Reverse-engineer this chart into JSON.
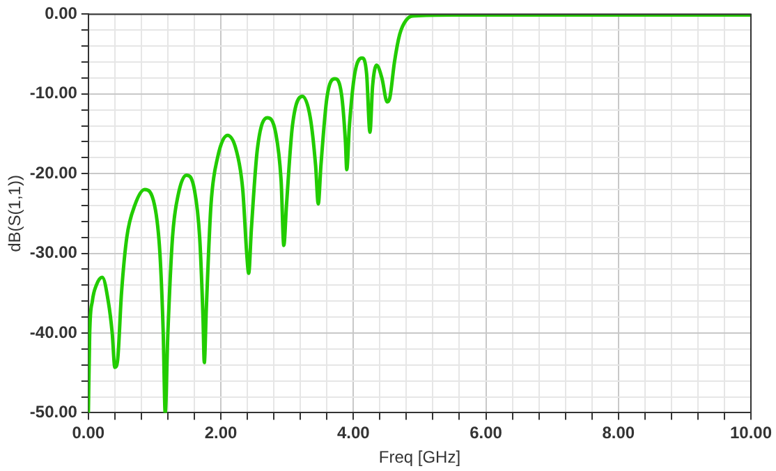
{
  "chart_data": {
    "type": "line",
    "xlabel": "Freq [GHz]",
    "ylabel": "dB(S(1,1))",
    "x": [
      0,
      0.02,
      0.06,
      0.12,
      0.21,
      0.3,
      0.36,
      0.4,
      0.44,
      0.5,
      0.58,
      0.7,
      0.85,
      1.0,
      1.08,
      1.13,
      1.16,
      1.2,
      1.27,
      1.36,
      1.48,
      1.6,
      1.68,
      1.73,
      1.75,
      1.78,
      1.85,
      1.95,
      2.1,
      2.23,
      2.33,
      2.39,
      2.42,
      2.46,
      2.55,
      2.7,
      2.83,
      2.91,
      2.95,
      2.99,
      3.08,
      3.23,
      3.35,
      3.43,
      3.47,
      3.51,
      3.6,
      3.72,
      3.82,
      3.88,
      3.9,
      3.94,
      4.02,
      4.13,
      4.2,
      4.25,
      4.29,
      4.35,
      4.43,
      4.51,
      4.55,
      4.62,
      4.7,
      4.8,
      4.93,
      5.5,
      10
    ],
    "series": [
      {
        "color": "#22cc00",
        "values": [
          -50,
          -40,
          -36,
          -34,
          -33,
          -36,
          -40,
          -44.3,
          -43.5,
          -35,
          -28,
          -24,
          -22,
          -24,
          -30,
          -40,
          -50,
          -40,
          -28,
          -22.5,
          -20.2,
          -22,
          -28,
          -38,
          -43.7,
          -37,
          -24,
          -18,
          -15.2,
          -17,
          -22,
          -30,
          -32.5,
          -27,
          -17,
          -13,
          -15,
          -21,
          -29,
          -24,
          -14,
          -10.3,
          -13,
          -19,
          -23.8,
          -19,
          -10.5,
          -8.1,
          -10,
          -16,
          -19.5,
          -14,
          -7.5,
          -5.5,
          -7.5,
          -14.8,
          -9,
          -6.4,
          -8,
          -11,
          -10.5,
          -6,
          -2.5,
          -0.7,
          -0.2,
          -0.1,
          -0.1
        ]
      }
    ],
    "xlim": [
      0,
      10
    ],
    "ylim": [
      -50,
      0
    ],
    "xticks": [
      {
        "value": 0,
        "label": "0.00"
      },
      {
        "value": 0.4,
        "label": null
      },
      {
        "value": 0.8,
        "label": null
      },
      {
        "value": 1.2,
        "label": null
      },
      {
        "value": 1.6,
        "label": null
      },
      {
        "value": 2,
        "label": "2.00"
      },
      {
        "value": 2.4,
        "label": null
      },
      {
        "value": 2.8,
        "label": null
      },
      {
        "value": 3.2,
        "label": null
      },
      {
        "value": 3.6,
        "label": null
      },
      {
        "value": 4,
        "label": "4.00"
      },
      {
        "value": 4.4,
        "label": null
      },
      {
        "value": 4.8,
        "label": null
      },
      {
        "value": 5.2,
        "label": null
      },
      {
        "value": 5.6,
        "label": null
      },
      {
        "value": 6,
        "label": "6.00"
      },
      {
        "value": 6.4,
        "label": null
      },
      {
        "value": 6.8,
        "label": null
      },
      {
        "value": 7.2,
        "label": null
      },
      {
        "value": 7.6,
        "label": null
      },
      {
        "value": 8,
        "label": "8.00"
      },
      {
        "value": 8.4,
        "label": null
      },
      {
        "value": 8.8,
        "label": null
      },
      {
        "value": 9.2,
        "label": null
      },
      {
        "value": 9.6,
        "label": null
      },
      {
        "value": 10,
        "label": "10.00"
      }
    ],
    "yticks": [
      {
        "value": -50,
        "label": "-50.00"
      },
      {
        "value": -48,
        "label": null
      },
      {
        "value": -46,
        "label": null
      },
      {
        "value": -44,
        "label": null
      },
      {
        "value": -42,
        "label": null
      },
      {
        "value": -40,
        "label": "-40.00"
      },
      {
        "value": -38,
        "label": null
      },
      {
        "value": -36,
        "label": null
      },
      {
        "value": -34,
        "label": null
      },
      {
        "value": -32,
        "label": null
      },
      {
        "value": -30,
        "label": "-30.00"
      },
      {
        "value": -28,
        "label": null
      },
      {
        "value": -26,
        "label": null
      },
      {
        "value": -24,
        "label": null
      },
      {
        "value": -22,
        "label": null
      },
      {
        "value": -20,
        "label": "-20.00"
      },
      {
        "value": -18,
        "label": null
      },
      {
        "value": -16,
        "label": null
      },
      {
        "value": -14,
        "label": null
      },
      {
        "value": -12,
        "label": null
      },
      {
        "value": -10,
        "label": "-10.00"
      },
      {
        "value": -8,
        "label": null
      },
      {
        "value": -6,
        "label": null
      },
      {
        "value": -4,
        "label": null
      },
      {
        "value": -2,
        "label": null
      },
      {
        "value": 0,
        "label": "0.00"
      }
    ],
    "grid": true,
    "line_style": "solid"
  }
}
